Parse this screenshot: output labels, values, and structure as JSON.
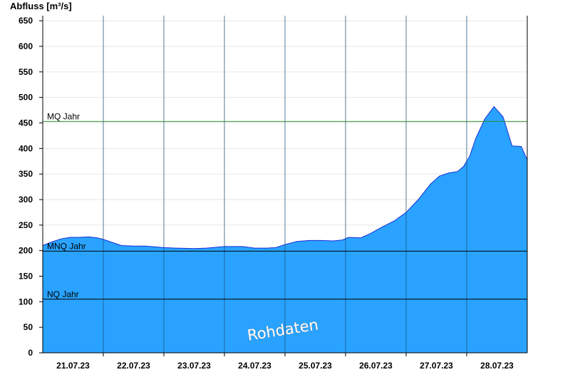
{
  "chart_data": {
    "type": "area",
    "ylabel": "Abfluss [m³/s]",
    "ylim": [
      0,
      660
    ],
    "yticks": [
      0,
      50,
      100,
      150,
      200,
      250,
      300,
      350,
      400,
      450,
      500,
      550,
      600,
      650
    ],
    "xlim": [
      0,
      8
    ],
    "day_boundaries": [
      1,
      2,
      3,
      4,
      5,
      6,
      7
    ],
    "xtick_positions": [
      0.5,
      1.5,
      2.5,
      3.5,
      4.5,
      5.5,
      6.5,
      7.5
    ],
    "xtick_labels": [
      "21.07.23",
      "22.07.23",
      "23.07.23",
      "24.07.23",
      "25.07.23",
      "26.07.23",
      "27.07.23",
      "28.07.23"
    ],
    "grid": true,
    "series": [
      {
        "color": "#29a3ff",
        "x": [
          0.0,
          0.15,
          0.3,
          0.45,
          0.6,
          0.75,
          0.9,
          1.0,
          1.1,
          1.3,
          1.5,
          1.7,
          2.0,
          2.2,
          2.5,
          2.7,
          3.0,
          3.3,
          3.5,
          3.7,
          3.85,
          4.0,
          4.2,
          4.4,
          4.6,
          4.8,
          4.95,
          5.05,
          5.25,
          5.4,
          5.6,
          5.8,
          6.0,
          6.2,
          6.4,
          6.55,
          6.7,
          6.85,
          6.95,
          7.05,
          7.15,
          7.3,
          7.45,
          7.6,
          7.75,
          7.9,
          8.0
        ],
        "y": [
          210,
          217,
          223,
          226,
          226,
          227,
          225,
          222,
          218,
          210,
          209,
          209,
          206,
          205,
          204,
          205,
          208,
          208,
          205,
          205,
          206,
          212,
          218,
          220,
          220,
          219,
          221,
          226,
          225,
          233,
          246,
          258,
          275,
          300,
          330,
          346,
          352,
          355,
          365,
          385,
          420,
          458,
          482,
          462,
          405,
          404,
          378
        ]
      }
    ],
    "reference_lines": [
      {
        "label": "MQ Jahr",
        "value": 453,
        "color": "#2e8b2e"
      },
      {
        "label": "MNQ Jahr",
        "value": 199,
        "color": "#000000"
      },
      {
        "label": "NQ Jahr",
        "value": 105,
        "color": "#000000"
      }
    ],
    "watermark": "Rohdaten"
  }
}
